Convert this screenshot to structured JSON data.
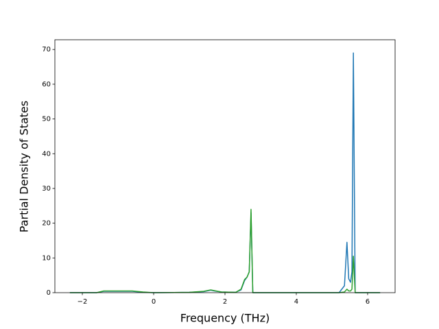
{
  "chart_data": {
    "type": "line",
    "xlabel": "Frequency (THz)",
    "ylabel": "Partial Density of States",
    "x": [
      -2.35,
      -1.6,
      -1.4,
      -1.0,
      -0.6,
      -0.3,
      0,
      1.0,
      1.4,
      1.6,
      1.7,
      1.9,
      2.3,
      2.45,
      2.55,
      2.62,
      2.68,
      2.73,
      2.78,
      3.0,
      5.2,
      5.35,
      5.42,
      5.47,
      5.52,
      5.56,
      5.6,
      5.65,
      5.7,
      6.35
    ],
    "series": [
      {
        "color": "#1f77b4",
        "values": [
          0,
          0,
          0.4,
          0.4,
          0.4,
          0.1,
          0,
          0.1,
          0.3,
          0.7,
          0.5,
          0.2,
          0.1,
          0.8,
          3.5,
          4.5,
          6,
          23,
          0,
          0,
          0,
          2,
          14.5,
          4,
          3,
          6,
          69,
          0,
          0,
          0
        ]
      },
      {
        "color": "#2ca02c",
        "values": [
          0,
          0,
          0.5,
          0.5,
          0.5,
          0.2,
          0,
          0.1,
          0.4,
          0.8,
          0.6,
          0.2,
          0.1,
          1,
          3.8,
          4.5,
          6,
          24,
          0,
          0,
          0,
          0.2,
          1,
          0.5,
          0.5,
          1,
          10.5,
          0,
          0,
          0
        ]
      }
    ],
    "xlim": [
      -2.77,
      6.77
    ],
    "ylim": [
      0,
      72.8
    ],
    "xticks": [
      {
        "value": -2,
        "label": "−2"
      },
      0,
      2,
      4,
      6
    ],
    "yticks": [
      0,
      10,
      20,
      30,
      40,
      50,
      60,
      70
    ]
  }
}
